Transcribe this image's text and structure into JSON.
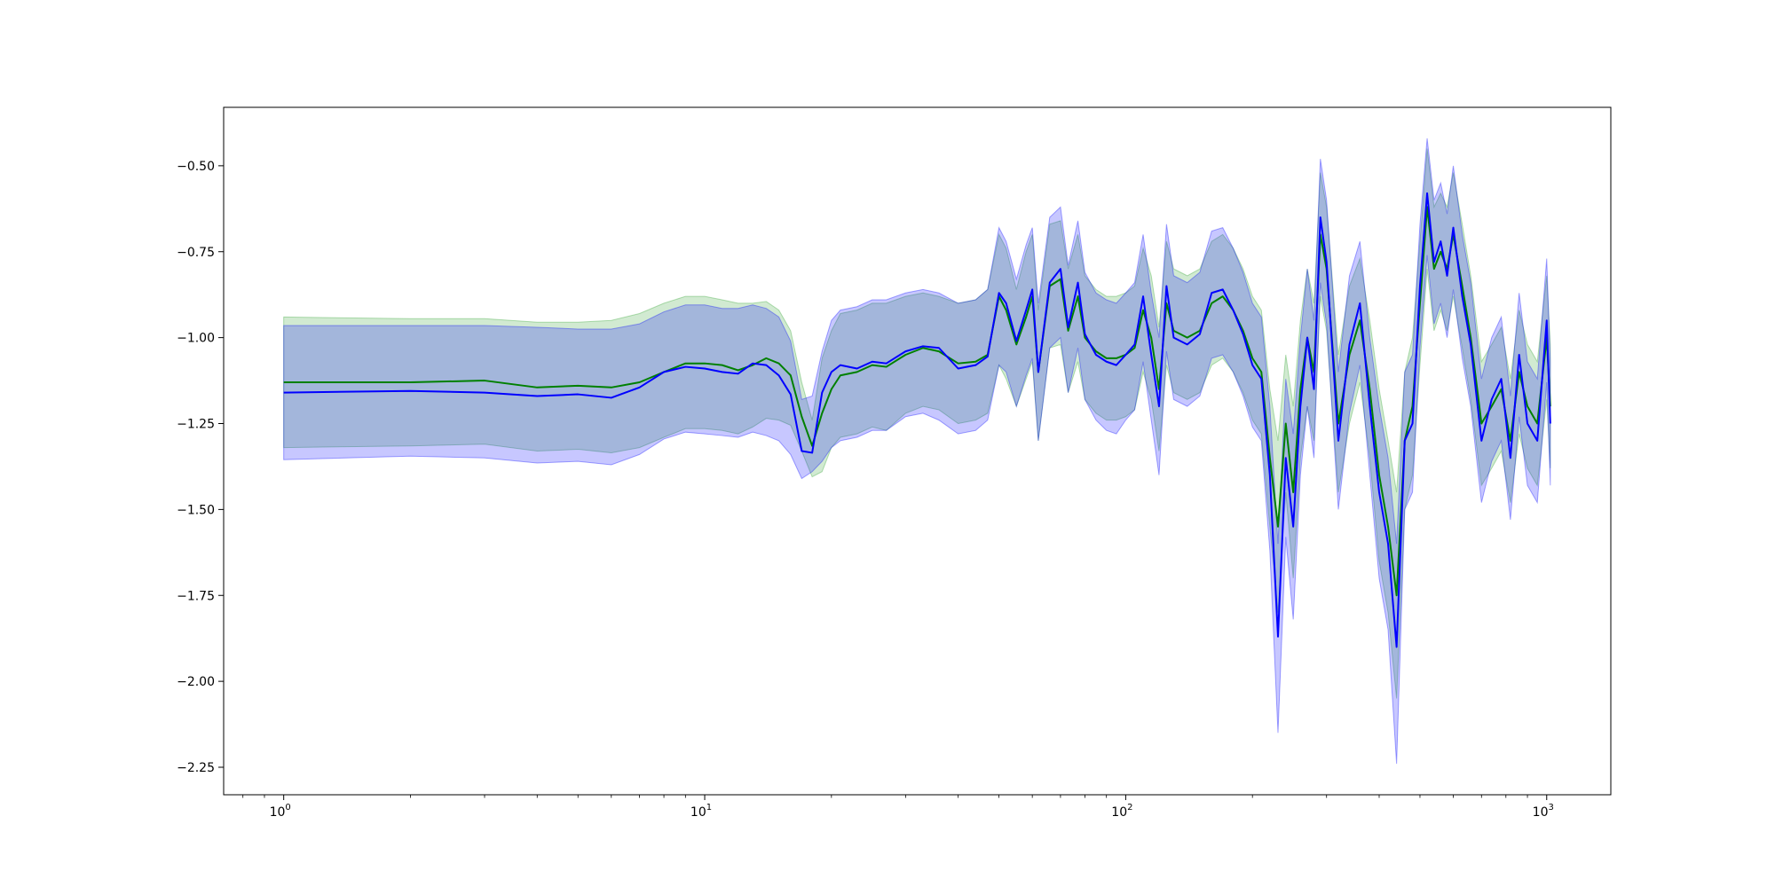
{
  "chart_data": {
    "type": "line",
    "title": "",
    "xlabel": "",
    "ylabel": "",
    "x_scale": "log",
    "xlim": [
      0.72,
      1420
    ],
    "ylim": [
      -2.33,
      -0.33
    ],
    "x_ticks": [
      {
        "value": 1,
        "base": "10",
        "exp": "0"
      },
      {
        "value": 10,
        "base": "10",
        "exp": "1"
      },
      {
        "value": 100,
        "base": "10",
        "exp": "2"
      },
      {
        "value": 1000,
        "base": "10",
        "exp": "3"
      }
    ],
    "y_ticks": [
      {
        "value": -0.5,
        "label": "−0.50"
      },
      {
        "value": -0.75,
        "label": "−0.75"
      },
      {
        "value": -1.0,
        "label": "−1.00"
      },
      {
        "value": -1.25,
        "label": "−1.25"
      },
      {
        "value": -1.5,
        "label": "−1.50"
      },
      {
        "value": -1.75,
        "label": "−1.75"
      },
      {
        "value": -2.0,
        "label": "−2.00"
      },
      {
        "value": -2.25,
        "label": "−2.25"
      }
    ],
    "grid": false,
    "legend": "none",
    "series": [
      {
        "color": "#008000",
        "band_color": "#2ca02c",
        "points": [
          [
            1,
            -1.13,
            -0.94,
            -1.32
          ],
          [
            2,
            -1.13,
            -0.945,
            -1.315
          ],
          [
            3,
            -1.125,
            -0.945,
            -1.31
          ],
          [
            4,
            -1.145,
            -0.955,
            -1.33
          ],
          [
            5,
            -1.14,
            -0.955,
            -1.325
          ],
          [
            6,
            -1.145,
            -0.95,
            -1.335
          ],
          [
            7,
            -1.13,
            -0.93,
            -1.32
          ],
          [
            8,
            -1.1,
            -0.9,
            -1.29
          ],
          [
            9,
            -1.075,
            -0.88,
            -1.265
          ],
          [
            10,
            -1.075,
            -0.88,
            -1.265
          ],
          [
            11,
            -1.08,
            -0.89,
            -1.27
          ],
          [
            12,
            -1.095,
            -0.9,
            -1.28
          ],
          [
            13,
            -1.08,
            -0.9,
            -1.26
          ],
          [
            14,
            -1.06,
            -0.895,
            -1.235
          ],
          [
            15,
            -1.075,
            -0.92,
            -1.24
          ],
          [
            16,
            -1.11,
            -0.98,
            -1.255
          ],
          [
            17,
            -1.23,
            -1.13,
            -1.33
          ],
          [
            18,
            -1.315,
            -1.24,
            -1.405
          ],
          [
            19,
            -1.22,
            -1.06,
            -1.39
          ],
          [
            20,
            -1.15,
            -0.98,
            -1.32
          ],
          [
            21,
            -1.11,
            -0.93,
            -1.29
          ],
          [
            23,
            -1.1,
            -0.92,
            -1.28
          ],
          [
            25,
            -1.08,
            -0.9,
            -1.26
          ],
          [
            27,
            -1.085,
            -0.9,
            -1.27
          ],
          [
            30,
            -1.05,
            -0.88,
            -1.22
          ],
          [
            33,
            -1.03,
            -0.87,
            -1.2
          ],
          [
            36,
            -1.04,
            -0.88,
            -1.21
          ],
          [
            40,
            -1.075,
            -0.9,
            -1.25
          ],
          [
            44,
            -1.07,
            -0.89,
            -1.24
          ],
          [
            47,
            -1.05,
            -0.86,
            -1.22
          ],
          [
            50,
            -0.88,
            -0.7,
            -1.08
          ],
          [
            52,
            -0.92,
            -0.74,
            -1.12
          ],
          [
            55,
            -1.02,
            -0.86,
            -1.2
          ],
          [
            58,
            -0.94,
            -0.75,
            -1.12
          ],
          [
            60,
            -0.88,
            -0.7,
            -1.07
          ],
          [
            62,
            -1.1,
            -0.92,
            -1.3
          ],
          [
            66,
            -0.85,
            -0.67,
            -1.03
          ],
          [
            70,
            -0.83,
            -0.66,
            -1.02
          ],
          [
            73,
            -0.98,
            -0.8,
            -1.16
          ],
          [
            77,
            -0.88,
            -0.7,
            -1.07
          ],
          [
            80,
            -1.0,
            -0.82,
            -1.18
          ],
          [
            85,
            -1.04,
            -0.86,
            -1.22
          ],
          [
            90,
            -1.06,
            -0.88,
            -1.24
          ],
          [
            95,
            -1.06,
            -0.88,
            -1.24
          ],
          [
            100,
            -1.05,
            -0.87,
            -1.23
          ],
          [
            105,
            -1.03,
            -0.85,
            -1.21
          ],
          [
            110,
            -0.92,
            -0.74,
            -1.1
          ],
          [
            115,
            -1.0,
            -0.82,
            -1.18
          ],
          [
            120,
            -1.15,
            -0.97,
            -1.33
          ],
          [
            125,
            -0.9,
            -0.72,
            -1.08
          ],
          [
            130,
            -0.98,
            -0.8,
            -1.16
          ],
          [
            140,
            -1.0,
            -0.82,
            -1.18
          ],
          [
            150,
            -0.98,
            -0.8,
            -1.16
          ],
          [
            160,
            -0.9,
            -0.72,
            -1.08
          ],
          [
            170,
            -0.88,
            -0.7,
            -1.06
          ],
          [
            180,
            -0.92,
            -0.74,
            -1.1
          ],
          [
            190,
            -0.98,
            -0.8,
            -1.16
          ],
          [
            200,
            -1.06,
            -0.88,
            -1.24
          ],
          [
            210,
            -1.1,
            -0.92,
            -1.28
          ],
          [
            220,
            -1.35,
            -1.15,
            -1.55
          ],
          [
            230,
            -1.55,
            -1.3,
            -1.8
          ],
          [
            240,
            -1.25,
            -1.05,
            -1.45
          ],
          [
            250,
            -1.45,
            -1.2,
            -1.7
          ],
          [
            260,
            -1.15,
            -0.95,
            -1.35
          ],
          [
            270,
            -1.0,
            -0.8,
            -1.2
          ],
          [
            280,
            -1.1,
            -0.9,
            -1.3
          ],
          [
            290,
            -0.7,
            -0.52,
            -0.88
          ],
          [
            300,
            -0.8,
            -0.62,
            -0.98
          ],
          [
            320,
            -1.25,
            -1.05,
            -1.45
          ],
          [
            340,
            -1.05,
            -0.85,
            -1.25
          ],
          [
            360,
            -0.95,
            -0.77,
            -1.13
          ],
          [
            380,
            -1.15,
            -0.95,
            -1.35
          ],
          [
            400,
            -1.4,
            -1.15,
            -1.65
          ],
          [
            420,
            -1.55,
            -1.3,
            -1.8
          ],
          [
            440,
            -1.75,
            -1.45,
            -2.05
          ],
          [
            460,
            -1.3,
            -1.1,
            -1.5
          ],
          [
            480,
            -1.2,
            -1.0,
            -1.4
          ],
          [
            500,
            -0.9,
            -0.72,
            -1.08
          ],
          [
            520,
            -0.62,
            -0.45,
            -0.8
          ],
          [
            540,
            -0.8,
            -0.62,
            -0.98
          ],
          [
            560,
            -0.75,
            -0.58,
            -0.92
          ],
          [
            580,
            -0.8,
            -0.62,
            -0.98
          ],
          [
            600,
            -0.7,
            -0.52,
            -0.88
          ],
          [
            630,
            -0.85,
            -0.67,
            -1.03
          ],
          [
            660,
            -1.0,
            -0.82,
            -1.18
          ],
          [
            700,
            -1.25,
            -1.07,
            -1.43
          ],
          [
            740,
            -1.2,
            -1.02,
            -1.38
          ],
          [
            780,
            -1.15,
            -0.97,
            -1.33
          ],
          [
            820,
            -1.3,
            -1.12,
            -1.48
          ],
          [
            860,
            -1.1,
            -0.92,
            -1.28
          ],
          [
            900,
            -1.2,
            -1.02,
            -1.38
          ],
          [
            950,
            -1.25,
            -1.07,
            -1.43
          ],
          [
            1000,
            -1.0,
            -0.82,
            -1.18
          ],
          [
            1020,
            -1.2,
            -1.02,
            -1.38
          ]
        ]
      },
      {
        "color": "#0000ff",
        "band_color": "#0000ff",
        "points": [
          [
            1,
            -1.16,
            -0.965,
            -1.355
          ],
          [
            2,
            -1.155,
            -0.965,
            -1.345
          ],
          [
            3,
            -1.16,
            -0.965,
            -1.35
          ],
          [
            4,
            -1.17,
            -0.97,
            -1.365
          ],
          [
            5,
            -1.165,
            -0.975,
            -1.36
          ],
          [
            6,
            -1.175,
            -0.975,
            -1.37
          ],
          [
            7,
            -1.145,
            -0.96,
            -1.34
          ],
          [
            8,
            -1.1,
            -0.925,
            -1.295
          ],
          [
            9,
            -1.085,
            -0.905,
            -1.275
          ],
          [
            10,
            -1.09,
            -0.905,
            -1.28
          ],
          [
            11,
            -1.1,
            -0.915,
            -1.285
          ],
          [
            12,
            -1.105,
            -0.915,
            -1.29
          ],
          [
            13,
            -1.075,
            -0.905,
            -1.275
          ],
          [
            14,
            -1.08,
            -0.915,
            -1.285
          ],
          [
            15,
            -1.11,
            -0.94,
            -1.3
          ],
          [
            16,
            -1.165,
            -1.01,
            -1.34
          ],
          [
            17,
            -1.33,
            -1.18,
            -1.41
          ],
          [
            18,
            -1.335,
            -1.17,
            -1.39
          ],
          [
            19,
            -1.16,
            -1.04,
            -1.36
          ],
          [
            20,
            -1.1,
            -0.95,
            -1.32
          ],
          [
            21,
            -1.08,
            -0.92,
            -1.3
          ],
          [
            23,
            -1.09,
            -0.91,
            -1.29
          ],
          [
            25,
            -1.07,
            -0.89,
            -1.27
          ],
          [
            27,
            -1.075,
            -0.89,
            -1.27
          ],
          [
            30,
            -1.04,
            -0.87,
            -1.23
          ],
          [
            33,
            -1.025,
            -0.86,
            -1.22
          ],
          [
            36,
            -1.03,
            -0.87,
            -1.24
          ],
          [
            40,
            -1.09,
            -0.9,
            -1.28
          ],
          [
            44,
            -1.08,
            -0.89,
            -1.27
          ],
          [
            47,
            -1.055,
            -0.86,
            -1.24
          ],
          [
            50,
            -0.87,
            -0.68,
            -1.08
          ],
          [
            52,
            -0.9,
            -0.72,
            -1.1
          ],
          [
            55,
            -1.01,
            -0.83,
            -1.2
          ],
          [
            58,
            -0.92,
            -0.73,
            -1.11
          ],
          [
            60,
            -0.86,
            -0.68,
            -1.06
          ],
          [
            62,
            -1.1,
            -0.9,
            -1.3
          ],
          [
            66,
            -0.84,
            -0.65,
            -1.03
          ],
          [
            70,
            -0.8,
            -0.62,
            -1.0
          ],
          [
            73,
            -0.97,
            -0.79,
            -1.16
          ],
          [
            77,
            -0.84,
            -0.66,
            -1.03
          ],
          [
            80,
            -0.99,
            -0.81,
            -1.18
          ],
          [
            85,
            -1.05,
            -0.87,
            -1.24
          ],
          [
            90,
            -1.07,
            -0.89,
            -1.27
          ],
          [
            95,
            -1.08,
            -0.9,
            -1.28
          ],
          [
            100,
            -1.05,
            -0.87,
            -1.24
          ],
          [
            105,
            -1.02,
            -0.84,
            -1.21
          ],
          [
            110,
            -0.88,
            -0.7,
            -1.07
          ],
          [
            115,
            -1.05,
            -0.87,
            -1.24
          ],
          [
            120,
            -1.2,
            -1.0,
            -1.4
          ],
          [
            125,
            -0.85,
            -0.67,
            -1.04
          ],
          [
            130,
            -1.0,
            -0.82,
            -1.18
          ],
          [
            140,
            -1.02,
            -0.84,
            -1.2
          ],
          [
            150,
            -0.99,
            -0.81,
            -1.17
          ],
          [
            160,
            -0.87,
            -0.69,
            -1.06
          ],
          [
            170,
            -0.86,
            -0.68,
            -1.05
          ],
          [
            180,
            -0.92,
            -0.74,
            -1.1
          ],
          [
            190,
            -0.99,
            -0.81,
            -1.17
          ],
          [
            200,
            -1.08,
            -0.9,
            -1.26
          ],
          [
            210,
            -1.12,
            -0.94,
            -1.3
          ],
          [
            220,
            -1.4,
            -1.2,
            -1.62
          ],
          [
            230,
            -1.87,
            -1.6,
            -2.15
          ],
          [
            240,
            -1.35,
            -1.12,
            -1.58
          ],
          [
            250,
            -1.55,
            -1.28,
            -1.82
          ],
          [
            260,
            -1.2,
            -1.0,
            -1.4
          ],
          [
            270,
            -1.0,
            -0.8,
            -1.2
          ],
          [
            280,
            -1.15,
            -0.95,
            -1.35
          ],
          [
            290,
            -0.65,
            -0.48,
            -0.84
          ],
          [
            300,
            -0.78,
            -0.6,
            -0.96
          ],
          [
            320,
            -1.3,
            -1.1,
            -1.5
          ],
          [
            340,
            -1.02,
            -0.82,
            -1.22
          ],
          [
            360,
            -0.9,
            -0.72,
            -1.08
          ],
          [
            380,
            -1.2,
            -1.0,
            -1.4
          ],
          [
            400,
            -1.45,
            -1.2,
            -1.7
          ],
          [
            420,
            -1.6,
            -1.35,
            -1.85
          ],
          [
            440,
            -1.9,
            -1.6,
            -2.24
          ],
          [
            460,
            -1.3,
            -1.1,
            -1.5
          ],
          [
            480,
            -1.25,
            -1.05,
            -1.45
          ],
          [
            500,
            -0.85,
            -0.67,
            -1.03
          ],
          [
            520,
            -0.58,
            -0.42,
            -0.76
          ],
          [
            540,
            -0.78,
            -0.6,
            -0.96
          ],
          [
            560,
            -0.72,
            -0.55,
            -0.9
          ],
          [
            580,
            -0.82,
            -0.64,
            -1.0
          ],
          [
            600,
            -0.68,
            -0.5,
            -0.86
          ],
          [
            630,
            -0.88,
            -0.7,
            -1.06
          ],
          [
            660,
            -1.02,
            -0.84,
            -1.2
          ],
          [
            700,
            -1.3,
            -1.12,
            -1.48
          ],
          [
            740,
            -1.18,
            -1.0,
            -1.36
          ],
          [
            780,
            -1.12,
            -0.94,
            -1.3
          ],
          [
            820,
            -1.35,
            -1.17,
            -1.53
          ],
          [
            860,
            -1.05,
            -0.87,
            -1.23
          ],
          [
            900,
            -1.25,
            -1.07,
            -1.43
          ],
          [
            950,
            -1.3,
            -1.12,
            -1.48
          ],
          [
            1000,
            -0.95,
            -0.77,
            -1.13
          ],
          [
            1020,
            -1.25,
            -1.07,
            -1.43
          ]
        ]
      }
    ]
  }
}
